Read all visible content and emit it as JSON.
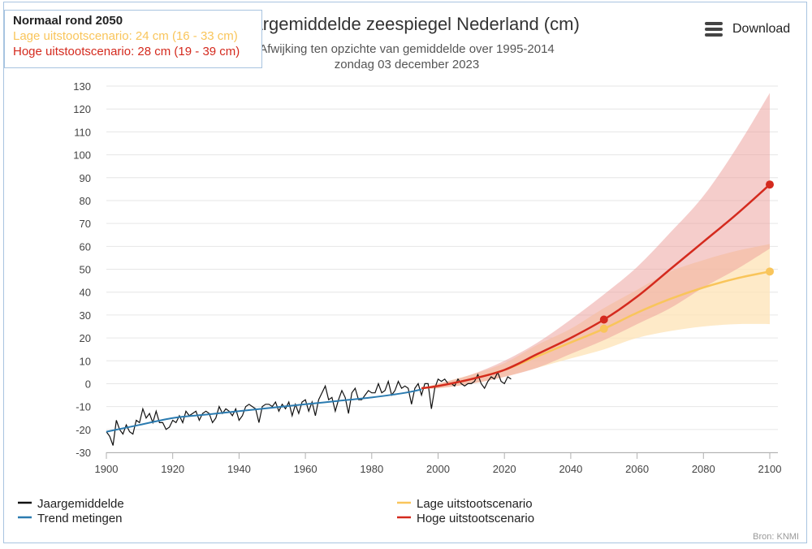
{
  "info": {
    "heading": "Normaal rond 2050",
    "low_line": "Lage uitstootscenario: 24 cm (16 - 33 cm)",
    "high_line": "Hoge uitstootscenario: 28 cm (19 - 39 cm)"
  },
  "toolbar": {
    "download_label": "Download",
    "download_icon": "menu-icon"
  },
  "source": "Bron: KNMI",
  "colors": {
    "observations": "#111111",
    "trend": "#2b7bb0",
    "low": "#f9c55b",
    "high": "#d42a1e",
    "low_band": "#fde3b5",
    "high_band": "#ec9b98",
    "grid": "#e6e6e6"
  },
  "chart_data": {
    "type": "line",
    "title": "Jaargemiddelde zeespiegel Nederland (cm)",
    "subtitle": "Afwijking ten opzichte van gemiddelde over 1995-2014",
    "date": "zondag 03 december 2023",
    "xlim": [
      1900,
      2100
    ],
    "ylim": [
      -30,
      130
    ],
    "x_ticks": [
      1900,
      1920,
      1940,
      1960,
      1980,
      2000,
      2020,
      2040,
      2060,
      2080,
      2100
    ],
    "y_ticks": [
      130,
      120,
      110,
      100,
      90,
      80,
      70,
      60,
      50,
      40,
      30,
      20,
      10,
      0,
      -10,
      -20,
      -30
    ],
    "grid": true,
    "legend": {
      "position": "bottom",
      "items": [
        {
          "label": "Jaargemiddelde",
          "series": "observations"
        },
        {
          "label": "Trend metingen",
          "series": "trend"
        },
        {
          "label": "Lage uitstootscenario",
          "series": "low"
        },
        {
          "label": "Hoge uitstootscenario",
          "series": "high"
        }
      ]
    },
    "series": [
      {
        "name": "Jaargemiddelde",
        "key": "observations",
        "x": [
          1900,
          1901,
          1902,
          1903,
          1904,
          1905,
          1906,
          1907,
          1908,
          1909,
          1910,
          1911,
          1912,
          1913,
          1914,
          1915,
          1916,
          1917,
          1918,
          1919,
          1920,
          1921,
          1922,
          1923,
          1924,
          1925,
          1926,
          1927,
          1928,
          1929,
          1930,
          1931,
          1932,
          1933,
          1934,
          1935,
          1936,
          1937,
          1938,
          1939,
          1940,
          1941,
          1942,
          1943,
          1944,
          1945,
          1946,
          1947,
          1948,
          1949,
          1950,
          1951,
          1952,
          1953,
          1954,
          1955,
          1956,
          1957,
          1958,
          1959,
          1960,
          1961,
          1962,
          1963,
          1964,
          1965,
          1966,
          1967,
          1968,
          1969,
          1970,
          1971,
          1972,
          1973,
          1974,
          1975,
          1976,
          1977,
          1978,
          1979,
          1980,
          1981,
          1982,
          1983,
          1984,
          1985,
          1986,
          1987,
          1988,
          1989,
          1990,
          1991,
          1992,
          1993,
          1994,
          1995,
          1996,
          1997,
          1998,
          1999,
          2000,
          2001,
          2002,
          2003,
          2004,
          2005,
          2006,
          2007,
          2008,
          2009,
          2010,
          2011,
          2012,
          2013,
          2014,
          2015,
          2016,
          2017,
          2018,
          2019,
          2020,
          2021,
          2022
        ],
        "y": [
          -21,
          -23,
          -27,
          -16,
          -20,
          -22,
          -18,
          -21,
          -22,
          -16,
          -17,
          -11,
          -15,
          -13,
          -17,
          -12,
          -17,
          -17,
          -20,
          -19,
          -16,
          -17,
          -14,
          -17,
          -12,
          -14,
          -13,
          -12,
          -16,
          -13,
          -12,
          -13,
          -17,
          -15,
          -10,
          -13,
          -11,
          -12,
          -14,
          -11,
          -16,
          -14,
          -10,
          -9,
          -10,
          -11,
          -17,
          -10,
          -9,
          -9,
          -10,
          -8,
          -12,
          -9,
          -11,
          -8,
          -14,
          -9,
          -13,
          -8,
          -7,
          -12,
          -8,
          -14,
          -7,
          -4,
          -1,
          -7,
          -6,
          -12,
          -7,
          -3,
          -6,
          -13,
          -4,
          -2,
          -7,
          -7,
          -5,
          -3,
          -4,
          -4,
          0,
          -4,
          -3,
          1,
          -5,
          -3,
          1,
          -2,
          -1,
          -2,
          -9,
          -2,
          0,
          -5,
          0,
          0,
          -11,
          -2,
          2,
          1,
          2,
          0,
          0,
          -1,
          2,
          0,
          -1,
          0,
          0,
          1,
          4,
          0,
          -2,
          1,
          3,
          2,
          5,
          1,
          0,
          3,
          2
        ]
      },
      {
        "name": "Trend metingen",
        "key": "trend",
        "x": [
          1900,
          1910,
          1920,
          1930,
          1940,
          1950,
          1960,
          1970,
          1980,
          1990,
          1995
        ],
        "y": [
          -21,
          -18,
          -15,
          -13.5,
          -12,
          -10.5,
          -9,
          -7.5,
          -6,
          -4,
          -2.5
        ]
      },
      {
        "name": "Lage uitstootscenario",
        "key": "low",
        "x": [
          1995,
          2000,
          2010,
          2020,
          2030,
          2040,
          2050,
          2060,
          2070,
          2080,
          2090,
          2100
        ],
        "y": [
          -2,
          -1,
          2,
          6,
          12,
          18,
          24,
          31,
          37,
          42,
          46,
          49
        ],
        "band_low": [
          -2,
          -2,
          0,
          3,
          7,
          11,
          15,
          20,
          23,
          25,
          26,
          26
        ],
        "band_high": [
          -2,
          0,
          4,
          9,
          17,
          24,
          33,
          41,
          49,
          54,
          58,
          61
        ],
        "markers": [
          {
            "x": 2050,
            "y": 24
          },
          {
            "x": 2100,
            "y": 49
          }
        ]
      },
      {
        "name": "Hoge uitstootscenario",
        "key": "high",
        "x": [
          1995,
          2000,
          2010,
          2020,
          2030,
          2040,
          2050,
          2060,
          2070,
          2080,
          2090,
          2100
        ],
        "y": [
          -2,
          -1,
          2,
          6,
          13,
          20,
          28,
          38,
          50,
          62,
          74,
          87
        ],
        "band_low": [
          -2,
          -2,
          0,
          3,
          7,
          13,
          19,
          26,
          33,
          42,
          50,
          59
        ],
        "band_high": [
          -2,
          0,
          4,
          10,
          18,
          28,
          39,
          51,
          66,
          82,
          103,
          127
        ],
        "markers": [
          {
            "x": 2050,
            "y": 28
          },
          {
            "x": 2100,
            "y": 87
          }
        ]
      }
    ]
  }
}
